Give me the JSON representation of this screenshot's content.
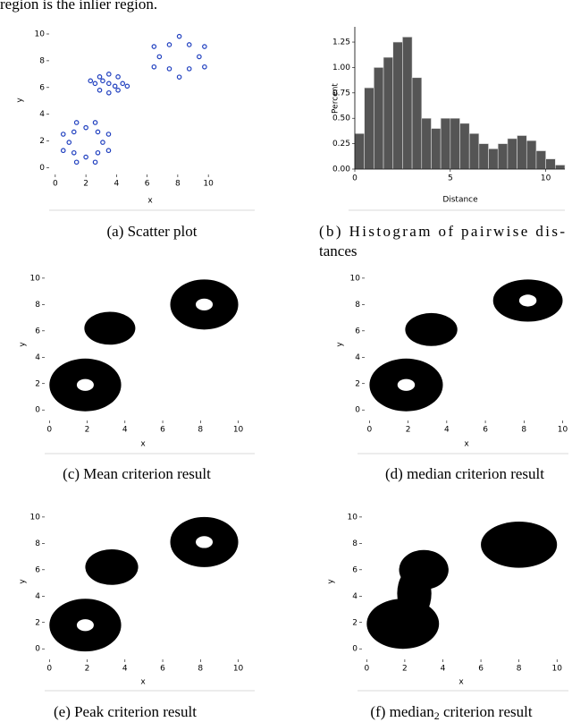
{
  "intro_text": "region is the inlier region.",
  "chart_data": [
    {
      "type": "scatter",
      "caption": "(a) Scatter plot",
      "xlabel": "x",
      "ylabel": "y",
      "color": "#1f3fbf",
      "xlim": [
        -0.4,
        10.4
      ],
      "ylim": [
        -0.5,
        10.2
      ],
      "xticks": [
        0,
        2,
        4,
        6,
        8,
        10
      ],
      "yticks": [
        0,
        2,
        4,
        6,
        8,
        10
      ],
      "x": [
        3.1,
        3.48,
        2.78,
        2.61,
        2,
        1.39,
        1.22,
        0.52,
        0.9,
        0.52,
        1.22,
        1.39,
        2,
        2.61,
        2.78,
        3.48,
        3.5,
        2.6,
        4.4,
        3.5,
        3.5,
        2.9,
        4.1,
        2.9,
        4.1,
        3.1,
        3.9,
        2.3,
        4.7,
        9.4,
        9.75,
        8.75,
        8.1,
        7.45,
        6.45,
        6.8,
        6.45,
        7.45,
        8.1,
        8.75,
        9.75
      ],
      "y": [
        1.9,
        2.51,
        2.68,
        3.38,
        3.0,
        3.38,
        2.68,
        2.51,
        1.9,
        1.29,
        1.12,
        0.42,
        0.8,
        0.42,
        1.12,
        1.29,
        6.3,
        6.3,
        6.3,
        7.0,
        5.6,
        6.8,
        6.8,
        5.8,
        5.8,
        6.5,
        6.1,
        6.5,
        6.1,
        8.3,
        9.06,
        9.2,
        9.82,
        9.2,
        9.06,
        8.3,
        7.54,
        7.4,
        6.78,
        7.4,
        7.54
      ]
    },
    {
      "type": "histogram",
      "caption": "(b) Histogram of pairwise dis-",
      "caption_line2": "tances",
      "xlabel": "Distance",
      "ylabel": "Percent",
      "color": "#555555",
      "xlim": [
        0,
        11
      ],
      "ylim": [
        0,
        1.4
      ],
      "xticks": [
        0,
        5,
        10
      ],
      "yticks": [
        {
          "value": 0,
          "label": "0.00"
        },
        {
          "value": 0.25,
          "label": "0.25"
        },
        {
          "value": 0.5,
          "label": "0.50"
        },
        {
          "value": 0.75,
          "label": "0.75"
        },
        {
          "value": 1,
          "label": "1.00"
        },
        {
          "value": 1.25,
          "label": "1.25"
        }
      ],
      "bins": [
        0,
        0.5,
        1,
        1.5,
        2,
        2.5,
        3,
        3.5,
        4,
        4.5,
        5,
        5.5,
        6,
        6.5,
        7,
        7.5,
        8,
        8.5,
        9,
        9.5,
        10,
        10.5,
        11
      ],
      "values": [
        0.35,
        0.8,
        1.0,
        1.1,
        1.25,
        1.3,
        0.9,
        0.5,
        0.4,
        0.5,
        0.5,
        0.45,
        0.35,
        0.25,
        0.2,
        0.25,
        0.3,
        0.33,
        0.28,
        0.18,
        0.1,
        0.04
      ]
    },
    {
      "type": "region",
      "caption": "(c) Mean criterion result",
      "xlabel": "x",
      "ylabel": "y",
      "color": "#000000",
      "xlim": [
        -0.25,
        10.4
      ],
      "ylim": [
        -0.8,
        10.4
      ],
      "xticks": [
        0,
        2,
        4,
        6,
        8,
        10
      ],
      "yticks": [
        0,
        2,
        4,
        6,
        8,
        10
      ],
      "regions": [
        {
          "cx": 1.9,
          "cy": 1.9,
          "rx": 1.9,
          "ry": 2.0,
          "hole": 0.45
        },
        {
          "cx": 3.2,
          "cy": 6.2,
          "rx": 1.35,
          "ry": 1.25,
          "hole": 0
        },
        {
          "cx": 8.2,
          "cy": 8.0,
          "rx": 1.8,
          "ry": 1.9,
          "hole": 0.45
        }
      ]
    },
    {
      "type": "region",
      "caption": "(d) median criterion result",
      "xlabel": "x",
      "ylabel": "y",
      "color": "#000000",
      "xlim": [
        -0.25,
        10.3
      ],
      "ylim": [
        -0.8,
        10.4
      ],
      "xticks": [
        0,
        2,
        4,
        6,
        8,
        10
      ],
      "yticks": [
        0,
        2,
        4,
        6,
        8,
        10
      ],
      "regions": [
        {
          "cx": 1.9,
          "cy": 1.9,
          "rx": 1.9,
          "ry": 2.0,
          "hole": 0.45
        },
        {
          "cx": 3.2,
          "cy": 6.1,
          "rx": 1.35,
          "ry": 1.25,
          "hole": 0
        },
        {
          "cx": 8.2,
          "cy": 8.3,
          "rx": 1.8,
          "ry": 1.6,
          "hole": 0.45
        }
      ]
    },
    {
      "type": "region",
      "caption": "(e) Peak criterion result",
      "xlabel": "x",
      "ylabel": "y",
      "color": "#000000",
      "xlim": [
        -0.25,
        10.4
      ],
      "ylim": [
        -0.8,
        10.4
      ],
      "xticks": [
        0,
        2,
        4,
        6,
        8,
        10
      ],
      "yticks": [
        0,
        2,
        4,
        6,
        8,
        10
      ],
      "regions": [
        {
          "cx": 1.9,
          "cy": 1.8,
          "rx": 1.9,
          "ry": 2.0,
          "hole": 0.45
        },
        {
          "cx": 3.3,
          "cy": 6.2,
          "rx": 1.4,
          "ry": 1.35,
          "hole": 0
        },
        {
          "cx": 8.2,
          "cy": 8.1,
          "rx": 1.8,
          "ry": 1.9,
          "hole": 0.45
        }
      ]
    },
    {
      "type": "region",
      "caption": "(f) median",
      "caption_sub": "2",
      "caption_tail": " criterion result",
      "xlabel": "x",
      "ylabel": "y",
      "color": "#000000",
      "xlim": [
        -0.25,
        10.6
      ],
      "ylim": [
        -0.8,
        10.4
      ],
      "xticks": [
        0,
        2,
        4,
        6,
        8,
        10
      ],
      "yticks": [
        0,
        2,
        4,
        6,
        8,
        10
      ],
      "regions": [
        {
          "cx": 8.0,
          "cy": 7.9,
          "rx": 2.0,
          "ry": 1.75,
          "hole": 0
        },
        {
          "cx": 1.9,
          "cy": 1.9,
          "rx": 1.9,
          "ry": 1.9,
          "hole": 0
        },
        {
          "cx": 2.5,
          "cy": 4.2,
          "rx": 0.9,
          "ry": 2.0,
          "hole": 0
        },
        {
          "cx": 3.0,
          "cy": 6.0,
          "rx": 1.3,
          "ry": 1.5,
          "hole": 0
        }
      ]
    }
  ]
}
